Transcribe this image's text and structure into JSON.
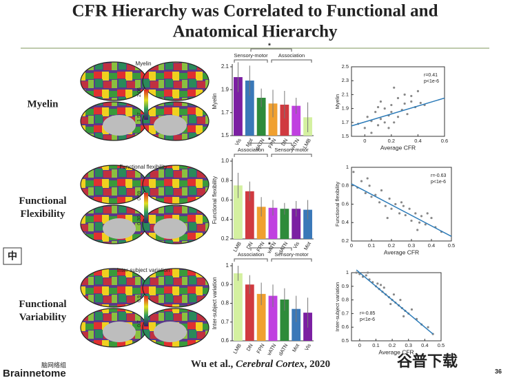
{
  "slide": {
    "title": [
      "CFR Hierarchy was Correlated to Functional and",
      "Anatomical Hierarchy"
    ],
    "rows": [
      {
        "label": [
          "Myelin"
        ],
        "map_title": "Myelin",
        "colorbar": [
          "2.06",
          "1.57"
        ]
      },
      {
        "label": [
          "Functional",
          "Flexibility"
        ],
        "map_title": "Functional flexibility",
        "colorbar": [
          "0.69",
          "0.30"
        ]
      },
      {
        "label": [
          "Functional",
          "Variability"
        ],
        "map_title": "Inter-subject variation",
        "colorbar": [
          "0.9",
          "0.7"
        ]
      }
    ],
    "citation": [
      "Wu et al., ",
      "Cerebral Cortex",
      ", 2020"
    ],
    "page": "36",
    "badge": "中",
    "logo": "Brainnetome",
    "logo_cn": "脑网络组",
    "watermark": "谷普下载"
  },
  "chart_data": [
    {
      "type": "bar",
      "ylabel": "Myelin",
      "categories": [
        "Vis",
        "Mot",
        "dATN",
        "FPN",
        "DN",
        "vATN",
        "LMB"
      ],
      "values": [
        2.01,
        1.98,
        1.83,
        1.78,
        1.77,
        1.76,
        1.66
      ],
      "errors": [
        0.13,
        0.13,
        0.08,
        0.12,
        0.12,
        0.07,
        0.13
      ],
      "colors": [
        "#7b1fa2",
        "#3a78b8",
        "#2e8b3a",
        "#f0a030",
        "#d03a40",
        "#c040e0",
        "#d4f0a0"
      ],
      "ylim": [
        1.5,
        2.1
      ],
      "yticks": [
        1.5,
        1.7,
        1.9,
        2.1
      ],
      "groups": [
        "Sensory-motor",
        "Association"
      ],
      "significance": "*"
    },
    {
      "type": "scatter",
      "xlabel": "Average CFR",
      "ylabel": "Myelin",
      "color": "#888888",
      "line_color": "#2a7ab8",
      "annotations": [
        "r=0.41",
        "p<1e-6"
      ],
      "x": [
        -0.05,
        0.0,
        0.02,
        0.05,
        0.08,
        0.1,
        0.12,
        0.15,
        0.18,
        0.2,
        0.22,
        0.25,
        0.28,
        0.3,
        0.32,
        0.35,
        0.38,
        0.4,
        0.42,
        0.45,
        0.05,
        0.1,
        0.15,
        0.2,
        0.25,
        0.3,
        0.35,
        0.12,
        0.18,
        0.22
      ],
      "y": [
        1.68,
        1.62,
        1.78,
        1.72,
        1.85,
        1.66,
        1.75,
        1.9,
        1.8,
        1.95,
        1.7,
        2.05,
        1.88,
        2.1,
        1.82,
        2.0,
        1.92,
        2.15,
        1.98,
        1.95,
        1.55,
        1.92,
        1.7,
        1.85,
        1.78,
        1.97,
        2.08,
        2.0,
        1.62,
        2.2
      ],
      "fit": {
        "x": [
          -0.1,
          0.6
        ],
        "y": [
          1.65,
          2.05
        ]
      },
      "xlim": [
        -0.1,
        0.6
      ],
      "xticks": [
        0,
        0.2,
        0.4,
        0.6
      ],
      "ylim": [
        1.5,
        2.5
      ],
      "yticks": [
        1.5,
        1.7,
        1.9,
        2.1,
        2.3,
        2.5
      ]
    },
    {
      "type": "bar",
      "ylabel": "Functional flexibility",
      "categories": [
        "LMB",
        "DN",
        "FPN",
        "vATN",
        "dATN",
        "Vis",
        "Mot"
      ],
      "values": [
        0.75,
        0.69,
        0.53,
        0.52,
        0.51,
        0.51,
        0.5
      ],
      "errors": [
        0.13,
        0.1,
        0.1,
        0.08,
        0.06,
        0.08,
        0.1
      ],
      "colors": [
        "#d4f0a0",
        "#d03a40",
        "#f0a030",
        "#c040e0",
        "#2e8b3a",
        "#7b1fa2",
        "#3a78b8"
      ],
      "ylim": [
        0.2,
        1.0
      ],
      "yticks": [
        0.2,
        0.4,
        0.6,
        0.8,
        {
          "value": 1.0,
          "label": "1.0"
        }
      ],
      "groups": [
        "Association",
        "Sensory-motor"
      ],
      "significance": "*"
    },
    {
      "type": "scatter",
      "xlabel": "Average CFR",
      "ylabel": "Functional flexibility",
      "color": "#888888",
      "line_color": "#2a7ab8",
      "annotations": [
        "r=-0.63",
        "p<1e-6"
      ],
      "x": [
        0.01,
        0.03,
        0.05,
        0.07,
        0.09,
        0.1,
        0.12,
        0.14,
        0.15,
        0.17,
        0.19,
        0.2,
        0.22,
        0.24,
        0.25,
        0.27,
        0.29,
        0.3,
        0.32,
        0.34,
        0.35,
        0.37,
        0.4,
        0.42,
        0.45,
        0.08,
        0.18,
        0.26,
        0.33,
        0.38
      ],
      "y": [
        0.95,
        0.78,
        0.85,
        0.72,
        0.8,
        0.68,
        0.7,
        0.62,
        0.75,
        0.58,
        0.66,
        0.55,
        0.6,
        0.5,
        0.62,
        0.48,
        0.55,
        0.42,
        0.5,
        0.4,
        0.47,
        0.38,
        0.45,
        0.35,
        0.3,
        0.88,
        0.45,
        0.58,
        0.32,
        0.5
      ],
      "fit": {
        "x": [
          0,
          0.5
        ],
        "y": [
          0.82,
          0.25
        ]
      },
      "xlim": [
        0,
        0.5
      ],
      "xticks": [
        0,
        0.1,
        0.2,
        0.3,
        0.4,
        0.5
      ],
      "ylim": [
        0.2,
        1.0
      ],
      "yticks": [
        0.2,
        0.4,
        0.6,
        0.8,
        1
      ]
    },
    {
      "type": "bar",
      "ylabel": "Inter-subject variation",
      "categories": [
        "LMB",
        "DN",
        "FPN",
        "vATN",
        "dATN",
        "Mot",
        "Vis"
      ],
      "values": [
        0.96,
        0.9,
        0.85,
        0.84,
        0.82,
        0.77,
        0.75
      ],
      "errors": [
        0.04,
        0.05,
        0.06,
        0.06,
        0.06,
        0.07,
        0.08
      ],
      "colors": [
        "#d4f0a0",
        "#d03a40",
        "#f0a030",
        "#c040e0",
        "#2e8b3a",
        "#3a78b8",
        "#7b1fa2"
      ],
      "ylim": [
        0.6,
        1.0
      ],
      "yticks": [
        0.6,
        0.7,
        0.8,
        0.9,
        1
      ],
      "groups": [
        "Association",
        "Sensory-motor"
      ],
      "significance": "*"
    },
    {
      "type": "scatter",
      "xlabel": "Average CFR",
      "ylabel": "Inter-subject variation",
      "color": "#888888",
      "line_color": "#2a7ab8",
      "annotations": [
        "r=-0.85",
        "p<1e-6"
      ],
      "x": [
        -0.02,
        0.0,
        0.02,
        0.04,
        0.06,
        0.08,
        0.1,
        0.11,
        0.12,
        0.14,
        0.15,
        0.16,
        0.18,
        0.2,
        0.21,
        0.22,
        0.24,
        0.25,
        0.26,
        0.28,
        0.3,
        0.32,
        0.35,
        0.38,
        0.42,
        0.05,
        0.13,
        0.19,
        0.27,
        0.45
      ],
      "y": [
        1.0,
        0.99,
        0.97,
        0.98,
        0.95,
        0.93,
        0.9,
        0.92,
        0.88,
        0.86,
        0.89,
        0.84,
        0.82,
        0.8,
        0.84,
        0.78,
        0.76,
        0.8,
        0.74,
        0.72,
        0.7,
        0.73,
        0.66,
        0.62,
        0.6,
        1.0,
        0.91,
        0.77,
        0.68,
        0.55
      ],
      "fit": {
        "x": [
          -0.02,
          0.45
        ],
        "y": [
          1.02,
          0.55
        ]
      },
      "xlim": [
        -0.05,
        0.5
      ],
      "xticks": [
        0,
        0.1,
        0.2,
        0.3,
        0.4,
        0.5
      ],
      "ylim": [
        0.5,
        1.0
      ],
      "yticks": [
        0.5,
        0.6,
        0.7,
        0.8,
        0.9,
        1
      ]
    }
  ]
}
